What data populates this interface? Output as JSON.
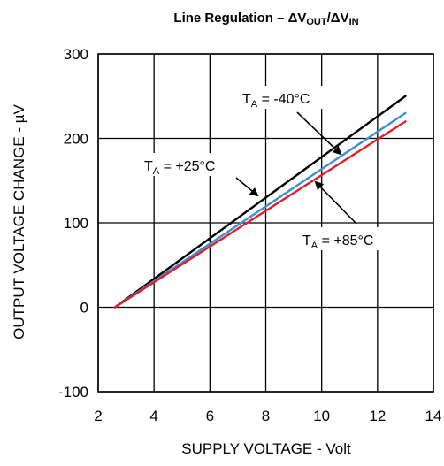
{
  "chart_data": {
    "type": "line",
    "title_main": "Line Regulation – ΔV",
    "title_sub1": "OUT",
    "title_sep": "/ΔV",
    "title_sub2": "IN",
    "xlabel": "SUPPLY VOLTAGE - Volt",
    "ylabel": "OUTPUT VOLTAGE CHANGE - µV",
    "xlim": [
      2,
      14
    ],
    "ylim": [
      -100,
      300
    ],
    "xticks": [
      "2",
      "4",
      "6",
      "8",
      "10",
      "12",
      "14"
    ],
    "yticks": [
      "-100",
      "0",
      "100",
      "200",
      "300"
    ],
    "grid": true,
    "series": [
      {
        "name": "TA = -40°C",
        "color": "#000000",
        "x": [
          2.6,
          13.0
        ],
        "y": [
          0,
          250
        ]
      },
      {
        "name": "TA = +25°C",
        "color": "#3a8fd8",
        "x": [
          2.6,
          13.0
        ],
        "y": [
          0,
          230
        ]
      },
      {
        "name": "TA = +85°C",
        "color": "#e0202a",
        "x": [
          2.6,
          13.0
        ],
        "y": [
          0,
          220
        ]
      }
    ],
    "annotations": [
      {
        "prefix": "T",
        "sub": "A",
        "rest": " = -40°C"
      },
      {
        "prefix": "T",
        "sub": "A",
        "rest": " = +25°C"
      },
      {
        "prefix": "T",
        "sub": "A",
        "rest": " = +85°C"
      }
    ]
  }
}
